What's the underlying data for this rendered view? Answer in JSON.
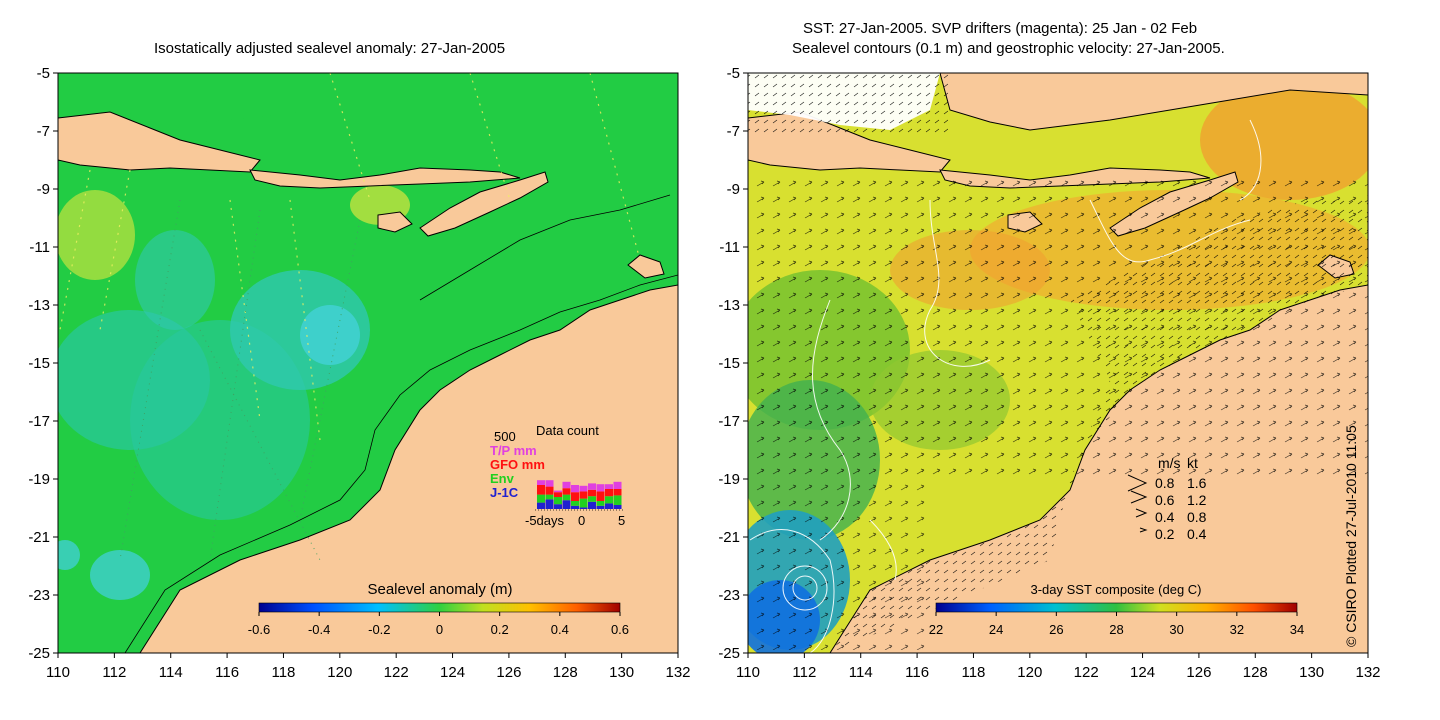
{
  "left_panel": {
    "title": "Isostatically adjusted sealevel anomaly: 27-Jan-2005",
    "colorbar": {
      "label": "Sealevel anomaly (m)",
      "ticks": [
        "-0.6",
        "-0.4",
        "-0.2",
        "0",
        "0.2",
        "0.4",
        "0.6"
      ],
      "min": -0.6,
      "max": 0.6
    },
    "data_count": {
      "title": "Data count",
      "ymax_label": "500",
      "legend": [
        {
          "label": "T/P mm",
          "color": "#e040e0"
        },
        {
          "label": "GFO mm",
          "color": "#ff1010"
        },
        {
          "label": "Env",
          "color": "#20d020"
        },
        {
          "label": "J-1C",
          "color": "#2020d0"
        }
      ],
      "xaxis": [
        "-5days",
        "0",
        "5"
      ],
      "stacks": [
        [
          30,
          60,
          50,
          40
        ],
        [
          40,
          50,
          30,
          60
        ],
        [
          10,
          30,
          45,
          30
        ],
        [
          40,
          40,
          35,
          55
        ],
        [
          45,
          55,
          30,
          20
        ],
        [
          35,
          45,
          55,
          10
        ],
        [
          40,
          40,
          35,
          45
        ],
        [
          45,
          60,
          30,
          20
        ],
        [
          30,
          45,
          45,
          35
        ],
        [
          45,
          40,
          60,
          25
        ]
      ]
    },
    "y_ticks": [
      "-5",
      "-7",
      "-9",
      "-11",
      "-13",
      "-15",
      "-17",
      "-19",
      "-21",
      "-23",
      "-25"
    ],
    "x_ticks": [
      "110",
      "112",
      "114",
      "116",
      "118",
      "120",
      "122",
      "124",
      "126",
      "128",
      "130",
      "132"
    ]
  },
  "right_panel": {
    "title_line1": "SST: 27-Jan-2005. SVP drifters (magenta): 25 Jan - 02 Feb",
    "title_line2": "Sealevel contours (0.1 m) and geostrophic velocity: 27-Jan-2005.",
    "colorbar": {
      "label": "3-day SST composite (deg C)",
      "ticks": [
        "22",
        "24",
        "26",
        "28",
        "30",
        "32",
        "34"
      ],
      "min": 22,
      "max": 34
    },
    "velocity_key": {
      "header_ms": "m/s",
      "header_kt": "kt",
      "rows": [
        {
          "ms": "0.8",
          "kt": "1.6"
        },
        {
          "ms": "0.6",
          "kt": "1.2"
        },
        {
          "ms": "0.4",
          "kt": "0.8"
        },
        {
          "ms": "0.2",
          "kt": "0.4"
        }
      ]
    },
    "y_ticks": [
      "-5",
      "-7",
      "-9",
      "-11",
      "-13",
      "-15",
      "-17",
      "-19",
      "-21",
      "-23",
      "-25"
    ],
    "x_ticks": [
      "110",
      "112",
      "114",
      "116",
      "118",
      "120",
      "122",
      "124",
      "126",
      "128",
      "130",
      "132"
    ]
  },
  "credit": "© CSIRO Plotted 27-Jul-2010 11:05",
  "colors": {
    "land": "#f9c99a",
    "ocean_anomaly": "#22cc44",
    "ocean_sst": "#d8e030"
  }
}
